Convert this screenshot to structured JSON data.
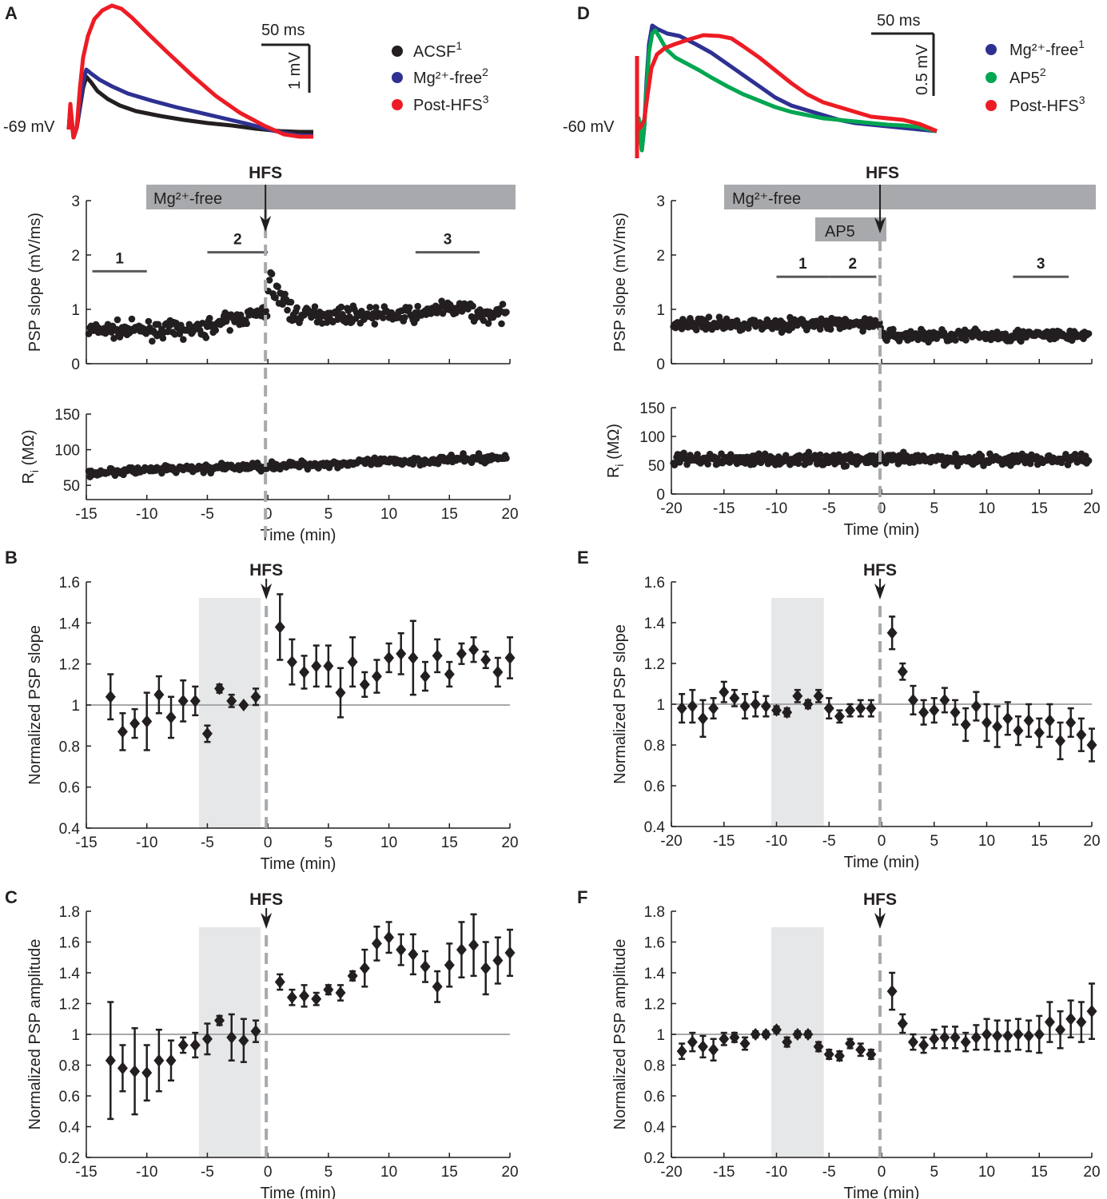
{
  "colors": {
    "black": "#231f20",
    "blue": "#2e3192",
    "red": "#ed1c24",
    "green": "#00a651",
    "grey_bar": "#a7a9ac",
    "grey_shade": "#e6e7e8",
    "dash": "#a7a9ac",
    "ref_line": "#a7a9ac"
  },
  "labels": {
    "hfs": "HFS",
    "mg_free": "Mg²⁺-free",
    "ap5": "AP5",
    "seg1": "1",
    "seg2": "2",
    "seg3": "3",
    "time": "Time (min)",
    "psp_slope": "PSP slope (mV/ms)",
    "ri": "Ri (MΩ)",
    "norm_slope": "Normalized PSP slope",
    "norm_amp": "Normalized PSP amplitude"
  },
  "panels": {
    "A": {
      "label": "A",
      "baseline": "-69 mV",
      "scale_time": "50 ms",
      "scale_volt": "1 mV",
      "legend": [
        {
          "text": "ACSF",
          "sup": "1",
          "color": "#231f20"
        },
        {
          "text": "Mg²⁺-free",
          "sup": "2",
          "color": "#2e3192"
        },
        {
          "text": "Post-HFS",
          "sup": "3",
          "color": "#ed1c24"
        }
      ]
    },
    "D": {
      "label": "D",
      "baseline": "-60 mV",
      "scale_time": "50 ms",
      "scale_volt": "0.5 mV",
      "legend": [
        {
          "text": "Mg²⁺-free",
          "sup": "1",
          "color": "#2e3192"
        },
        {
          "text": "AP5",
          "sup": "2",
          "color": "#00a651"
        },
        {
          "text": "Post-HFS",
          "sup": "3",
          "color": "#ed1c24"
        }
      ]
    },
    "B": {
      "label": "B"
    },
    "C": {
      "label": "C"
    },
    "E": {
      "label": "E"
    },
    "F": {
      "label": "F"
    }
  },
  "chart_data": [
    {
      "id": "A_slope",
      "type": "scatter",
      "ylabel": "PSP slope (mV/ms)",
      "xlim": [
        -15,
        20
      ],
      "ylim": [
        0,
        3
      ],
      "xticks": [
        -15,
        -10,
        -5,
        0,
        5,
        10,
        15,
        20
      ],
      "yticks": [
        0,
        1,
        2,
        3
      ],
      "hfs_at": 0,
      "segments": [
        {
          "x": [
            -14.5,
            -10
          ],
          "y": 1.7,
          "label": "1"
        },
        {
          "x": [
            -5,
            0
          ],
          "y": 2.05,
          "label": "2"
        },
        {
          "x": [
            12.2,
            17.5
          ],
          "y": 2.05,
          "label": "3"
        }
      ],
      "note": "~1 point per 6 s; mean ~0.6 before -5 min rising to ~0.8, peak ~1.8 just after HFS, ~0.9 after; visual summary of dense scatter"
    },
    {
      "id": "A_ri",
      "type": "scatter",
      "ylabel": "Ri (MΩ)",
      "xlabel": "Time (min)",
      "xlim": [
        -15,
        20
      ],
      "ylim": [
        30,
        150
      ],
      "xticks": [
        -15,
        -10,
        -5,
        0,
        5,
        10,
        15,
        20
      ],
      "yticks": [
        50,
        100,
        150
      ],
      "hfs_at": 0,
      "note": "rises slowly from ~65 to ~90 MΩ"
    },
    {
      "id": "D_slope",
      "type": "scatter",
      "ylabel": "PSP slope (mV/ms)",
      "xlim": [
        -20,
        20
      ],
      "ylim": [
        0,
        3
      ],
      "xticks": [
        -20,
        -15,
        -10,
        -5,
        0,
        5,
        10,
        15,
        20
      ],
      "yticks": [
        0,
        1,
        2,
        3
      ],
      "hfs_at": 0,
      "segments": [
        {
          "x": [
            -10,
            -5
          ],
          "y": 1.6,
          "label": "1"
        },
        {
          "x": [
            -5,
            -0.5
          ],
          "y": 1.6,
          "label": "2"
        },
        {
          "x": [
            12.5,
            17.8
          ],
          "y": 1.6,
          "label": "3"
        }
      ],
      "note": "~0.73 before HFS, ~0.5 after"
    },
    {
      "id": "D_ri",
      "type": "scatter",
      "ylabel": "Ri (MΩ)",
      "xlabel": "Time (min)",
      "xlim": [
        -20,
        20
      ],
      "ylim": [
        0,
        150
      ],
      "xticks": [
        -20,
        -15,
        -10,
        -5,
        0,
        5,
        10,
        15,
        20
      ],
      "yticks": [
        0,
        50,
        100,
        150
      ],
      "hfs_at": 0,
      "note": "~60 MΩ throughout"
    },
    {
      "id": "B",
      "type": "errorbar",
      "ylabel": "Normalized PSP slope",
      "xlabel": "Time (min)",
      "xlim": [
        -15,
        20
      ],
      "ylim": [
        0.4,
        1.6
      ],
      "xticks": [
        -15,
        -10,
        -5,
        0,
        5,
        10,
        15,
        20
      ],
      "yticks": [
        0.4,
        0.6,
        0.8,
        1,
        1.2,
        1.4,
        1.6
      ],
      "hfs_at": 0,
      "shade": [
        -5.7,
        -0.6
      ],
      "ref": 1,
      "x": [
        -13,
        -12,
        -11,
        -10,
        -9,
        -8,
        -7,
        -6,
        -5,
        -4,
        -3,
        -2,
        -1,
        1,
        2,
        3,
        4,
        5,
        6,
        7,
        8,
        9,
        10,
        11,
        12,
        13,
        14,
        15,
        16,
        17,
        18,
        19,
        20
      ],
      "y": [
        1.04,
        0.87,
        0.91,
        0.92,
        1.05,
        0.94,
        1.02,
        1.02,
        0.86,
        1.08,
        1.02,
        1.0,
        1.04,
        1.38,
        1.21,
        1.16,
        1.19,
        1.19,
        1.06,
        1.21,
        1.1,
        1.14,
        1.23,
        1.25,
        1.23,
        1.14,
        1.24,
        1.15,
        1.25,
        1.27,
        1.22,
        1.16,
        1.23
      ],
      "err": [
        0.11,
        0.09,
        0.07,
        0.14,
        0.09,
        0.1,
        0.1,
        0.07,
        0.04,
        0.02,
        0.03,
        0.0,
        0.04,
        0.16,
        0.11,
        0.08,
        0.1,
        0.1,
        0.12,
        0.12,
        0.06,
        0.08,
        0.07,
        0.1,
        0.18,
        0.07,
        0.08,
        0.06,
        0.05,
        0.06,
        0.04,
        0.07,
        0.1
      ]
    },
    {
      "id": "C",
      "type": "errorbar",
      "ylabel": "Normalized PSP amplitude",
      "xlabel": "Time (min)",
      "xlim": [
        -15,
        20
      ],
      "ylim": [
        0.2,
        1.8
      ],
      "xticks": [
        -15,
        -10,
        -5,
        0,
        5,
        10,
        15,
        20
      ],
      "yticks": [
        0.2,
        0.4,
        0.6,
        0.8,
        1,
        1.2,
        1.4,
        1.6,
        1.8
      ],
      "hfs_at": 0,
      "shade": [
        -5.7,
        -0.6
      ],
      "ref": 1,
      "x": [
        -13,
        -12,
        -11,
        -10,
        -9,
        -8,
        -7,
        -6,
        -5,
        -4,
        -3,
        -2,
        -1,
        1,
        2,
        3,
        4,
        5,
        6,
        7,
        8,
        9,
        10,
        11,
        12,
        13,
        14,
        15,
        16,
        17,
        18,
        19,
        20
      ],
      "y": [
        0.83,
        0.78,
        0.76,
        0.75,
        0.83,
        0.83,
        0.93,
        0.93,
        0.97,
        1.09,
        0.98,
        0.96,
        1.02,
        1.34,
        1.24,
        1.25,
        1.23,
        1.29,
        1.27,
        1.38,
        1.43,
        1.59,
        1.63,
        1.55,
        1.52,
        1.44,
        1.31,
        1.45,
        1.55,
        1.58,
        1.43,
        1.48,
        1.53
      ],
      "err": [
        0.38,
        0.15,
        0.28,
        0.18,
        0.2,
        0.13,
        0.05,
        0.08,
        0.1,
        0.03,
        0.15,
        0.14,
        0.07,
        0.05,
        0.05,
        0.07,
        0.04,
        0.03,
        0.05,
        0.03,
        0.12,
        0.11,
        0.1,
        0.1,
        0.13,
        0.1,
        0.1,
        0.14,
        0.18,
        0.2,
        0.17,
        0.15,
        0.15
      ]
    },
    {
      "id": "E",
      "type": "errorbar",
      "ylabel": "Normalized PSP slope",
      "xlabel": "Time (min)",
      "xlim": [
        -20,
        20
      ],
      "ylim": [
        0.4,
        1.6
      ],
      "xticks": [
        -20,
        -15,
        -10,
        -5,
        0,
        5,
        10,
        15,
        20
      ],
      "yticks": [
        0.4,
        0.6,
        0.8,
        1,
        1.2,
        1.4,
        1.6
      ],
      "hfs_at": 0,
      "shade": [
        -10.5,
        -5.5
      ],
      "ref": 1,
      "x": [
        -19,
        -18,
        -17,
        -16,
        -15,
        -14,
        -13,
        -12,
        -11,
        -10,
        -9,
        -8,
        -7,
        -6,
        -5,
        -4,
        -3,
        -2,
        -1,
        1,
        2,
        3,
        4,
        5,
        6,
        7,
        8,
        9,
        10,
        11,
        12,
        13,
        14,
        15,
        16,
        17,
        18,
        19,
        20
      ],
      "y": [
        0.98,
        0.99,
        0.93,
        0.98,
        1.06,
        1.03,
        0.99,
        1.0,
        0.99,
        0.97,
        0.96,
        1.04,
        1.0,
        1.04,
        0.98,
        0.94,
        0.97,
        0.98,
        0.98,
        1.35,
        1.16,
        1.02,
        0.96,
        0.97,
        1.02,
        0.96,
        0.9,
        0.99,
        0.91,
        0.89,
        0.93,
        0.87,
        0.92,
        0.86,
        0.92,
        0.82,
        0.91,
        0.85,
        0.8
      ],
      "err": [
        0.07,
        0.08,
        0.09,
        0.05,
        0.05,
        0.04,
        0.06,
        0.06,
        0.05,
        0.02,
        0.02,
        0.03,
        0.02,
        0.03,
        0.05,
        0.03,
        0.03,
        0.04,
        0.04,
        0.08,
        0.04,
        0.07,
        0.06,
        0.06,
        0.06,
        0.06,
        0.08,
        0.07,
        0.09,
        0.1,
        0.08,
        0.07,
        0.08,
        0.07,
        0.08,
        0.09,
        0.07,
        0.08,
        0.08
      ]
    },
    {
      "id": "F",
      "type": "errorbar",
      "ylabel": "Normalized PSP amplitude",
      "xlabel": "Time (min)",
      "xlim": [
        -20,
        20
      ],
      "ylim": [
        0.2,
        1.8
      ],
      "xticks": [
        -20,
        -15,
        -10,
        -5,
        0,
        5,
        10,
        15,
        20
      ],
      "yticks": [
        0.2,
        0.4,
        0.6,
        0.8,
        1,
        1.2,
        1.4,
        1.6,
        1.8
      ],
      "hfs_at": 0,
      "shade": [
        -10.5,
        -5.5
      ],
      "ref": 1,
      "x": [
        -19,
        -18,
        -17,
        -16,
        -15,
        -14,
        -13,
        -12,
        -11,
        -10,
        -9,
        -8,
        -7,
        -6,
        -5,
        -4,
        -3,
        -2,
        -1,
        1,
        2,
        3,
        4,
        5,
        6,
        7,
        8,
        9,
        10,
        11,
        12,
        13,
        14,
        15,
        16,
        17,
        18,
        19,
        20
      ],
      "y": [
        0.89,
        0.95,
        0.92,
        0.9,
        0.97,
        0.98,
        0.94,
        1.0,
        1.0,
        1.03,
        0.95,
        1.0,
        1.0,
        0.92,
        0.87,
        0.86,
        0.94,
        0.9,
        0.87,
        1.28,
        1.07,
        0.95,
        0.93,
        0.97,
        0.98,
        0.98,
        0.95,
        0.98,
        1.0,
        0.99,
        0.99,
        1.0,
        0.99,
        1.0,
        1.08,
        1.03,
        1.1,
        1.08,
        1.15
      ],
      "err": [
        0.05,
        0.06,
        0.07,
        0.07,
        0.04,
        0.03,
        0.04,
        0.02,
        0.02,
        0.02,
        0.03,
        0.02,
        0.02,
        0.03,
        0.03,
        0.03,
        0.03,
        0.04,
        0.03,
        0.12,
        0.06,
        0.05,
        0.05,
        0.06,
        0.07,
        0.07,
        0.06,
        0.08,
        0.1,
        0.1,
        0.1,
        0.1,
        0.1,
        0.12,
        0.13,
        0.12,
        0.12,
        0.13,
        0.18
      ]
    }
  ]
}
